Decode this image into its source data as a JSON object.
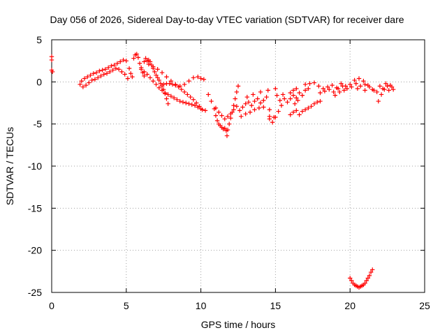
{
  "chart_data": {
    "type": "scatter",
    "title": "Day 056 of 2026, Sidereal Day-to-day VTEC variation (SDTVAR) for receiver dare",
    "xlabel": "GPS time / hours",
    "ylabel": "SDTVAR / TECUs",
    "xlim": [
      0,
      25
    ],
    "ylim": [
      -25,
      5
    ],
    "xticks": [
      0,
      5,
      10,
      15,
      20,
      25
    ],
    "yticks": [
      5,
      0,
      -5,
      -10,
      -15,
      -20,
      -25
    ],
    "xtick_labels": [
      "0",
      "5",
      "10",
      "15",
      "20",
      "25"
    ],
    "ytick_labels": [
      "5",
      "0",
      "-5",
      "-10",
      "-15",
      "-20",
      "-25"
    ],
    "grid": true,
    "marker": "+",
    "marker_color": "#ff0000",
    "series": [
      {
        "name": "SDTVAR",
        "points": [
          [
            0.0,
            3.0
          ],
          [
            0.0,
            2.6
          ],
          [
            0.0,
            1.4
          ],
          [
            0.05,
            1.2
          ],
          [
            1.9,
            -0.3
          ],
          [
            2.0,
            0.1
          ],
          [
            2.1,
            -0.6
          ],
          [
            2.2,
            0.4
          ],
          [
            2.3,
            -0.4
          ],
          [
            2.4,
            0.6
          ],
          [
            2.5,
            -0.1
          ],
          [
            2.6,
            0.8
          ],
          [
            2.7,
            0.2
          ],
          [
            2.8,
            1.0
          ],
          [
            2.9,
            0.3
          ],
          [
            3.0,
            1.1
          ],
          [
            3.1,
            0.5
          ],
          [
            3.2,
            1.3
          ],
          [
            3.3,
            0.7
          ],
          [
            3.4,
            1.4
          ],
          [
            3.5,
            0.9
          ],
          [
            3.6,
            1.5
          ],
          [
            3.7,
            1.0
          ],
          [
            3.8,
            1.7
          ],
          [
            3.9,
            1.2
          ],
          [
            4.0,
            1.9
          ],
          [
            4.1,
            1.4
          ],
          [
            4.2,
            2.0
          ],
          [
            4.3,
            1.6
          ],
          [
            4.4,
            2.2
          ],
          [
            4.5,
            1.5
          ],
          [
            4.6,
            2.4
          ],
          [
            4.7,
            1.2
          ],
          [
            4.8,
            2.6
          ],
          [
            4.9,
            0.9
          ],
          [
            5.0,
            2.5
          ],
          [
            5.1,
            0.4
          ],
          [
            5.2,
            1.6
          ],
          [
            5.3,
            1.0
          ],
          [
            5.4,
            0.6
          ],
          [
            5.5,
            2.8
          ],
          [
            5.6,
            3.2
          ],
          [
            5.7,
            3.3
          ],
          [
            5.8,
            2.9
          ],
          [
            5.9,
            2.2
          ],
          [
            6.0,
            1.7
          ],
          [
            6.1,
            1.1
          ],
          [
            6.2,
            0.7
          ],
          [
            6.3,
            2.8
          ],
          [
            6.4,
            2.5
          ],
          [
            6.5,
            2.6
          ],
          [
            6.6,
            2.4
          ],
          [
            6.7,
            2.0
          ],
          [
            6.8,
            1.6
          ],
          [
            6.9,
            1.2
          ],
          [
            7.0,
            0.8
          ],
          [
            7.1,
            0.5
          ],
          [
            7.2,
            0.2
          ],
          [
            7.3,
            -0.2
          ],
          [
            7.4,
            -0.5
          ],
          [
            7.5,
            -0.9
          ],
          [
            7.6,
            -1.4
          ],
          [
            7.7,
            -2.0
          ],
          [
            7.8,
            -2.6
          ],
          [
            6.0,
            1.5
          ],
          [
            6.2,
            1.2
          ],
          [
            6.4,
            0.9
          ],
          [
            6.6,
            0.5
          ],
          [
            6.8,
            0.1
          ],
          [
            7.0,
            -0.3
          ],
          [
            7.2,
            -0.7
          ],
          [
            7.4,
            -1.0
          ],
          [
            7.6,
            -1.3
          ],
          [
            7.8,
            -1.5
          ],
          [
            8.0,
            -1.7
          ],
          [
            8.2,
            -1.9
          ],
          [
            8.4,
            -2.1
          ],
          [
            8.6,
            -2.3
          ],
          [
            8.8,
            -2.4
          ],
          [
            9.0,
            -2.5
          ],
          [
            9.2,
            -2.6
          ],
          [
            9.4,
            -2.7
          ],
          [
            9.6,
            -2.8
          ],
          [
            9.8,
            -3.0
          ],
          [
            10.0,
            -3.2
          ],
          [
            6.2,
            2.4
          ],
          [
            6.5,
            2.1
          ],
          [
            6.8,
            1.8
          ],
          [
            7.1,
            1.5
          ],
          [
            7.4,
            1.1
          ],
          [
            7.7,
            0.6
          ],
          [
            8.0,
            0.1
          ],
          [
            8.3,
            -0.3
          ],
          [
            8.6,
            -0.5
          ],
          [
            8.9,
            -0.3
          ],
          [
            9.2,
            0.1
          ],
          [
            9.5,
            0.5
          ],
          [
            9.8,
            0.6
          ],
          [
            10.0,
            0.4
          ],
          [
            10.2,
            0.3
          ],
          [
            7.5,
            -0.3
          ],
          [
            7.7,
            -0.2
          ],
          [
            7.9,
            -0.2
          ],
          [
            8.1,
            -0.3
          ],
          [
            8.3,
            -0.4
          ],
          [
            8.5,
            -0.6
          ],
          [
            8.7,
            -0.9
          ],
          [
            8.9,
            -1.2
          ],
          [
            9.1,
            -1.5
          ],
          [
            9.3,
            -1.8
          ],
          [
            9.5,
            -2.1
          ],
          [
            9.7,
            -2.5
          ],
          [
            9.9,
            -2.9
          ],
          [
            10.1,
            -3.3
          ],
          [
            10.3,
            -3.4
          ],
          [
            10.5,
            -1.5
          ],
          [
            10.7,
            -2.3
          ],
          [
            10.9,
            -3.2
          ],
          [
            11.0,
            -4.0
          ],
          [
            11.1,
            -4.6
          ],
          [
            11.2,
            -5.0
          ],
          [
            11.3,
            -5.2
          ],
          [
            11.4,
            -5.4
          ],
          [
            11.5,
            -5.6
          ],
          [
            11.6,
            -5.5
          ],
          [
            11.7,
            -5.8
          ],
          [
            11.75,
            -6.4
          ],
          [
            11.8,
            -5.7
          ],
          [
            11.9,
            -5.0
          ],
          [
            12.0,
            -4.3
          ],
          [
            12.1,
            -3.6
          ],
          [
            12.2,
            -2.8
          ],
          [
            12.3,
            -2.0
          ],
          [
            12.4,
            -1.2
          ],
          [
            12.5,
            -0.5
          ],
          [
            11.0,
            -3.1
          ],
          [
            11.2,
            -3.6
          ],
          [
            11.4,
            -4.0
          ],
          [
            11.6,
            -4.4
          ],
          [
            11.8,
            -4.1
          ],
          [
            12.0,
            -3.8
          ],
          [
            12.2,
            -3.3
          ],
          [
            12.4,
            -2.9
          ],
          [
            12.6,
            -3.4
          ],
          [
            12.8,
            -3.0
          ],
          [
            13.0,
            -2.6
          ],
          [
            13.2,
            -2.4
          ],
          [
            13.4,
            -2.8
          ],
          [
            13.6,
            -2.3
          ],
          [
            13.8,
            -2.0
          ],
          [
            14.0,
            -2.5
          ],
          [
            14.2,
            -2.2
          ],
          [
            14.4,
            -1.8
          ],
          [
            12.7,
            -4.1
          ],
          [
            13.0,
            -3.8
          ],
          [
            13.3,
            -3.6
          ],
          [
            13.6,
            -3.3
          ],
          [
            13.9,
            -3.1
          ],
          [
            14.2,
            -3.0
          ],
          [
            13.1,
            -1.8
          ],
          [
            13.5,
            -1.5
          ],
          [
            14.0,
            -1.2
          ],
          [
            14.5,
            -1.0
          ],
          [
            14.6,
            -3.3
          ],
          [
            14.6,
            -4.1
          ],
          [
            15.0,
            -4.2
          ],
          [
            15.2,
            -3.5
          ],
          [
            15.4,
            -2.8
          ],
          [
            15.6,
            -2.0
          ],
          [
            15.8,
            -2.4
          ],
          [
            16.0,
            -2.0
          ],
          [
            16.2,
            -1.6
          ],
          [
            16.4,
            -1.9
          ],
          [
            16.6,
            -1.3
          ],
          [
            16.8,
            -1.6
          ],
          [
            17.0,
            -1.0
          ],
          [
            17.2,
            -0.8
          ],
          [
            15.0,
            -0.8
          ],
          [
            15.1,
            -1.6
          ],
          [
            15.3,
            -2.2
          ],
          [
            15.5,
            -1.5
          ],
          [
            16.3,
            -2.6
          ],
          [
            16.5,
            -2.2
          ],
          [
            14.6,
            -4.4
          ],
          [
            14.8,
            -4.8
          ],
          [
            14.9,
            -4.2
          ],
          [
            16.0,
            -3.9
          ],
          [
            16.2,
            -3.6
          ],
          [
            16.4,
            -3.4
          ],
          [
            16.6,
            -3.9
          ],
          [
            16.8,
            -3.5
          ],
          [
            17.0,
            -3.3
          ],
          [
            17.2,
            -3.1
          ],
          [
            17.4,
            -2.9
          ],
          [
            17.6,
            -2.6
          ],
          [
            17.8,
            -2.4
          ],
          [
            18.0,
            -2.3
          ],
          [
            16.0,
            -1.3
          ],
          [
            16.2,
            -1.0
          ],
          [
            16.4,
            -0.8
          ],
          [
            17.0,
            -0.3
          ],
          [
            17.3,
            -0.2
          ],
          [
            17.6,
            -0.1
          ],
          [
            17.9,
            -0.5
          ],
          [
            18.2,
            -0.8
          ],
          [
            18.5,
            -0.6
          ],
          [
            18.8,
            -0.4
          ],
          [
            19.1,
            -0.7
          ],
          [
            19.4,
            -0.2
          ],
          [
            19.7,
            -0.5
          ],
          [
            20.0,
            -0.3
          ],
          [
            20.3,
            0.2
          ],
          [
            20.6,
            0.4
          ],
          [
            20.9,
            0.1
          ],
          [
            21.2,
            -0.4
          ],
          [
            21.5,
            -0.9
          ],
          [
            21.8,
            -1.2
          ],
          [
            22.0,
            -0.5
          ],
          [
            22.2,
            -0.8
          ],
          [
            22.4,
            -0.2
          ],
          [
            22.6,
            -1.0
          ],
          [
            22.8,
            -0.6
          ],
          [
            18.0,
            -1.3
          ],
          [
            18.3,
            -1.1
          ],
          [
            18.6,
            -0.9
          ],
          [
            18.9,
            -1.2
          ],
          [
            19.2,
            -0.8
          ],
          [
            19.5,
            -0.5
          ],
          [
            19.8,
            -0.8
          ],
          [
            20.1,
            -0.6
          ],
          [
            20.4,
            -0.2
          ],
          [
            20.7,
            -0.5
          ],
          [
            21.0,
            -0.3
          ],
          [
            21.3,
            -0.6
          ],
          [
            21.6,
            -1.0
          ],
          [
            21.9,
            -2.3
          ],
          [
            22.1,
            -1.5
          ],
          [
            22.3,
            -0.9
          ],
          [
            22.5,
            -0.5
          ],
          [
            22.7,
            -0.4
          ],
          [
            22.9,
            -0.9
          ],
          [
            19.0,
            -1.6
          ],
          [
            19.3,
            -1.2
          ],
          [
            19.6,
            -1.0
          ],
          [
            20.5,
            -0.8
          ],
          [
            21.0,
            -1.0
          ],
          [
            20.0,
            -23.3
          ],
          [
            20.1,
            -23.6
          ],
          [
            20.2,
            -23.9
          ],
          [
            20.3,
            -24.1
          ],
          [
            20.4,
            -24.2
          ],
          [
            20.5,
            -24.3
          ],
          [
            20.6,
            -24.4
          ],
          [
            20.7,
            -24.3
          ],
          [
            20.8,
            -24.2
          ],
          [
            20.9,
            -24.1
          ],
          [
            21.0,
            -23.9
          ],
          [
            21.1,
            -23.6
          ],
          [
            21.2,
            -23.3
          ],
          [
            21.3,
            -23.0
          ],
          [
            21.4,
            -22.6
          ],
          [
            21.5,
            -22.3
          ]
        ]
      }
    ]
  }
}
